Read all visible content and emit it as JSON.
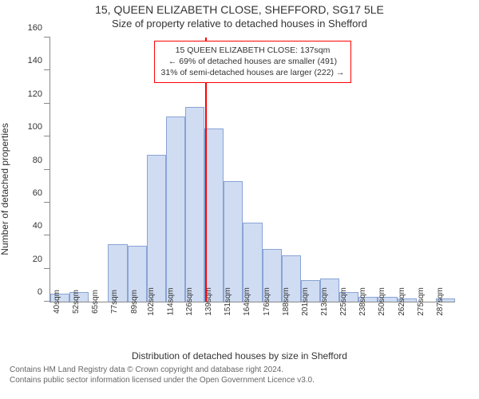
{
  "title_main": "15, QUEEN ELIZABETH CLOSE, SHEFFORD, SG17 5LE",
  "title_sub": "Size of property relative to detached houses in Shefford",
  "ylabel": "Number of detached properties",
  "xlabel": "Distribution of detached houses by size in Shefford",
  "chart": {
    "type": "histogram",
    "categories": [
      "40sqm",
      "52sqm",
      "65sqm",
      "77sqm",
      "89sqm",
      "102sqm",
      "114sqm",
      "126sqm",
      "139sqm",
      "151sqm",
      "164sqm",
      "176sqm",
      "188sqm",
      "201sqm",
      "213sqm",
      "225sqm",
      "238sqm",
      "250sqm",
      "262sqm",
      "275sqm",
      "287sqm"
    ],
    "values": [
      5,
      6,
      0,
      35,
      34,
      89,
      112,
      118,
      105,
      73,
      48,
      32,
      28,
      13,
      14,
      6,
      3,
      3,
      2,
      0,
      2
    ],
    "bar_fill": "#cfdcf2",
    "bar_border": "#8aa4d6",
    "ylim_max": 160,
    "ytick_step": 20,
    "yticks": [
      0,
      20,
      40,
      60,
      80,
      100,
      120,
      140,
      160
    ],
    "background": "#ffffff",
    "axis_color": "#888888",
    "ref_value_sqm": 137,
    "ref_x_min": 40,
    "ref_x_max": 293,
    "ref_color": "#ff0000"
  },
  "callout": {
    "line1": "15 QUEEN ELIZABETH CLOSE: 137sqm",
    "line2": "← 69% of detached houses are smaller (491)",
    "line3": "31% of semi-detached houses are larger (222) →",
    "border_color": "#ff0000",
    "fontsize": 10.5
  },
  "footer": {
    "line1": "Contains HM Land Registry data © Crown copyright and database right 2024.",
    "line2": "Contains public sector information licensed under the Open Government Licence v3.0."
  }
}
